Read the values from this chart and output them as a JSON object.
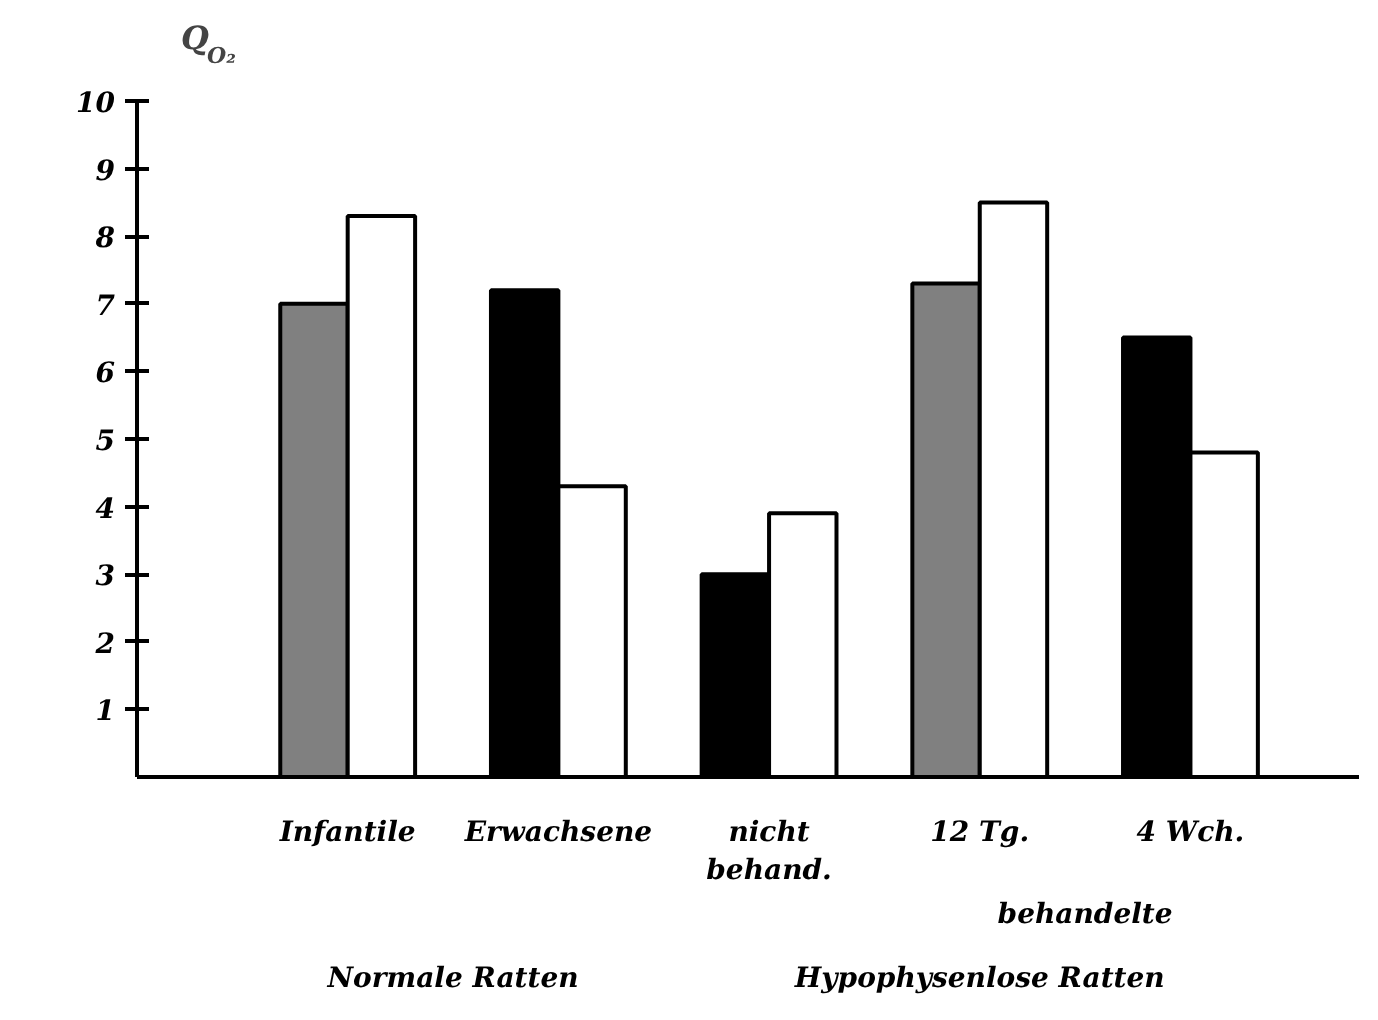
{
  "chart_data": {
    "type": "bar",
    "ylabel": "Q$_{O₂}$",
    "categories": [
      "Infantile",
      "Erwachsene",
      "nicht\nbehand.",
      "12 Tg.",
      "4 Wch."
    ],
    "series": [
      {
        "colors": [
          "#808080",
          "#000000",
          "#000000",
          "#808080",
          "#000000"
        ],
        "values": [
          7.0,
          7.2,
          3.0,
          7.3,
          6.5
        ]
      },
      {
        "color": "#ffffff",
        "values": [
          8.3,
          4.3,
          3.9,
          8.5,
          4.8
        ]
      }
    ],
    "ylim": [
      0,
      10
    ],
    "yticks": [
      1,
      2,
      3,
      4,
      5,
      6,
      7,
      8,
      9,
      10
    ],
    "grid": false,
    "annotations": [
      "behandelte",
      "Normale Ratten",
      "Hypophysenlose Ratten"
    ]
  }
}
